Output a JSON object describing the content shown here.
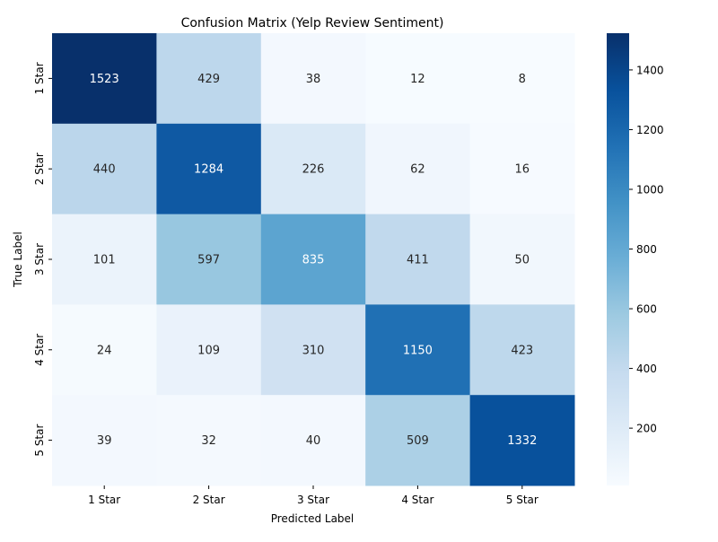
{
  "chart_data": {
    "type": "heatmap",
    "title": "Confusion Matrix (Yelp Review Sentiment)",
    "xlabel": "Predicted Label",
    "ylabel": "True Label",
    "x_categories": [
      "1 Star",
      "2 Star",
      "3 Star",
      "4 Star",
      "5 Star"
    ],
    "y_categories": [
      "1 Star",
      "2 Star",
      "3 Star",
      "4 Star",
      "5 Star"
    ],
    "values": [
      [
        1523,
        429,
        38,
        12,
        8
      ],
      [
        440,
        1284,
        226,
        62,
        16
      ],
      [
        101,
        597,
        835,
        411,
        50
      ],
      [
        24,
        109,
        310,
        1150,
        423
      ],
      [
        39,
        32,
        40,
        509,
        1332
      ]
    ],
    "colormap": "Blues",
    "value_range": [
      8,
      1523
    ],
    "colorbar_ticks": [
      200,
      400,
      600,
      800,
      1000,
      1200,
      1400
    ],
    "colorbar_tick_labels": [
      "200",
      "400",
      "600",
      "800",
      "1000",
      "1200",
      "1400"
    ],
    "colors": {
      "scale": [
        "#f7fbff",
        "#deebf7",
        "#c6dbef",
        "#9ecae1",
        "#6baed6",
        "#4292c6",
        "#2171b5",
        "#08519c",
        "#08306b"
      ],
      "text_dark": "#262626",
      "text_light": "#ffffff",
      "axis": "#000000"
    }
  }
}
